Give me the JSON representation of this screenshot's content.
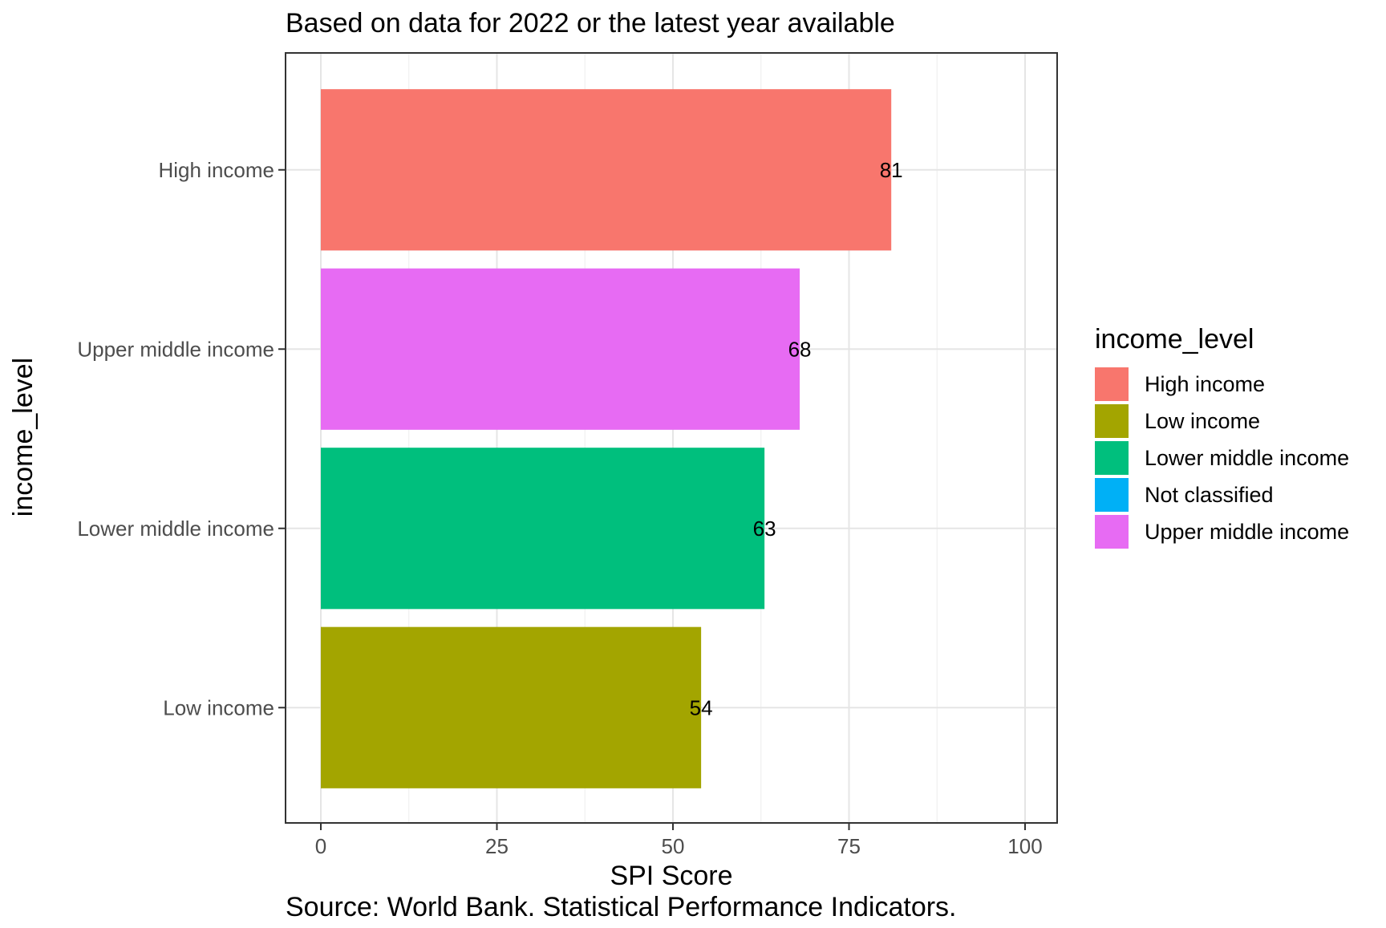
{
  "chart_data": {
    "type": "bar",
    "orientation": "horizontal",
    "title": "Based on data for 2022 or the latest year available",
    "caption": "Source: World Bank. Statistical Performance Indicators.",
    "xlabel": "SPI Score",
    "ylabel": "income_level",
    "xlim": [
      0,
      100
    ],
    "x_ticks": [
      "0",
      "25",
      "50",
      "75",
      "100"
    ],
    "grid": true,
    "categories": [
      "High income",
      "Upper middle income",
      "Lower middle income",
      "Low income"
    ],
    "values": [
      81,
      68,
      63,
      54
    ],
    "data_labels": [
      "81",
      "68",
      "63",
      "54"
    ],
    "bar_colors": [
      "#F8766D",
      "#E76BF3",
      "#00BF7D",
      "#A3A500"
    ],
    "legend": {
      "title": "income_level",
      "position": "right",
      "entries": [
        {
          "label": "High income",
          "color": "#F8766D"
        },
        {
          "label": "Low income",
          "color": "#A3A500"
        },
        {
          "label": "Lower middle income",
          "color": "#00BF7D"
        },
        {
          "label": "Not classified",
          "color": "#00B0F6"
        },
        {
          "label": "Upper middle income",
          "color": "#E76BF3"
        }
      ]
    }
  }
}
